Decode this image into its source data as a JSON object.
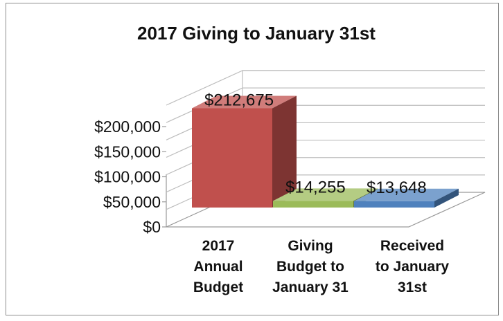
{
  "chart_data": {
    "type": "bar",
    "title": "2017 Giving to January 31st",
    "categories": [
      [
        "2017",
        "Annual",
        "Budget"
      ],
      [
        "Giving",
        "Budget to",
        "January 31"
      ],
      [
        "Received",
        "to January",
        "31st"
      ]
    ],
    "values": [
      212675,
      14255,
      13648
    ],
    "data_labels": [
      "$212,675",
      "$14,255",
      "$13,648"
    ],
    "y_ticks": [
      "$0",
      "$50,000",
      "$100,000",
      "$150,000",
      "$200,000"
    ],
    "ylim": [
      0,
      200000
    ],
    "colors": {
      "bar_1": "#c0504d",
      "bar_2": "#9bbb59",
      "bar_3": "#4f81bd"
    },
    "style": "3d-column",
    "grid": true,
    "legend": "none"
  }
}
